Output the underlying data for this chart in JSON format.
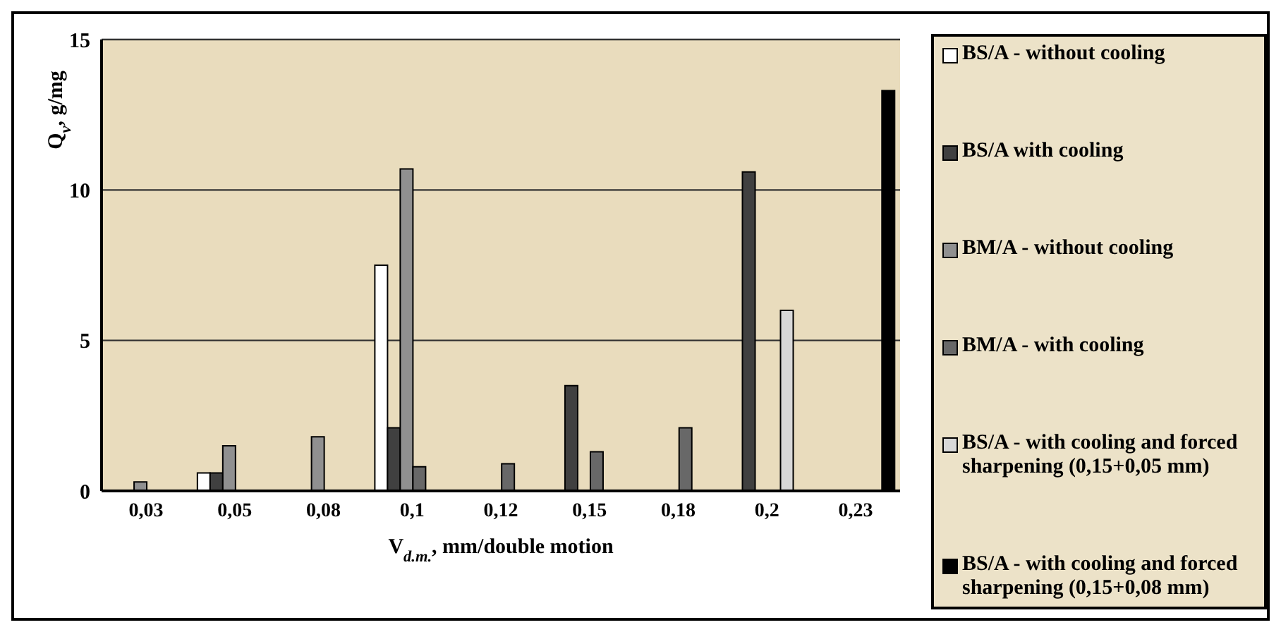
{
  "chart_data": {
    "type": "bar",
    "xlabel": "V$_{d.m.}$, mm/double motion",
    "ylabel": "Q$_{v}$, g/mg",
    "categories": [
      "0,03",
      "0,05",
      "0,08",
      "0,1",
      "0,12",
      "0,15",
      "0,18",
      "0,2",
      "0,23"
    ],
    "series": [
      {
        "name": "BS/A - without cooling",
        "color": "#ffffff",
        "values": [
          null,
          0.6,
          null,
          7.5,
          null,
          null,
          null,
          null,
          null
        ]
      },
      {
        "name": "BS/A   with cooling",
        "color": "#404040",
        "values": [
          null,
          0.6,
          null,
          2.1,
          null,
          3.5,
          null,
          10.6,
          null
        ]
      },
      {
        "name": "BM/A - without cooling",
        "color": "#909090",
        "values": [
          0.3,
          1.5,
          1.8,
          10.7,
          null,
          null,
          null,
          null,
          null
        ]
      },
      {
        "name": "BM/A - with cooling",
        "color": "#686868",
        "values": [
          null,
          null,
          null,
          0.8,
          0.9,
          1.3,
          2.1,
          null,
          null
        ]
      },
      {
        "name": "BS/A - with cooling and forced sharpening (0,15+0,05 mm)",
        "color": "#d8d8d8",
        "values": [
          null,
          null,
          null,
          null,
          null,
          null,
          null,
          6.0,
          null
        ]
      },
      {
        "name": "BS/A - with cooling and forced sharpening (0,15+0,08 mm)",
        "color": "#000000",
        "values": [
          null,
          null,
          null,
          null,
          null,
          null,
          null,
          null,
          13.3
        ]
      }
    ],
    "ylim": [
      0,
      15
    ],
    "yticks": [
      0,
      5,
      10,
      15
    ],
    "grid": "y",
    "legend": "right"
  }
}
